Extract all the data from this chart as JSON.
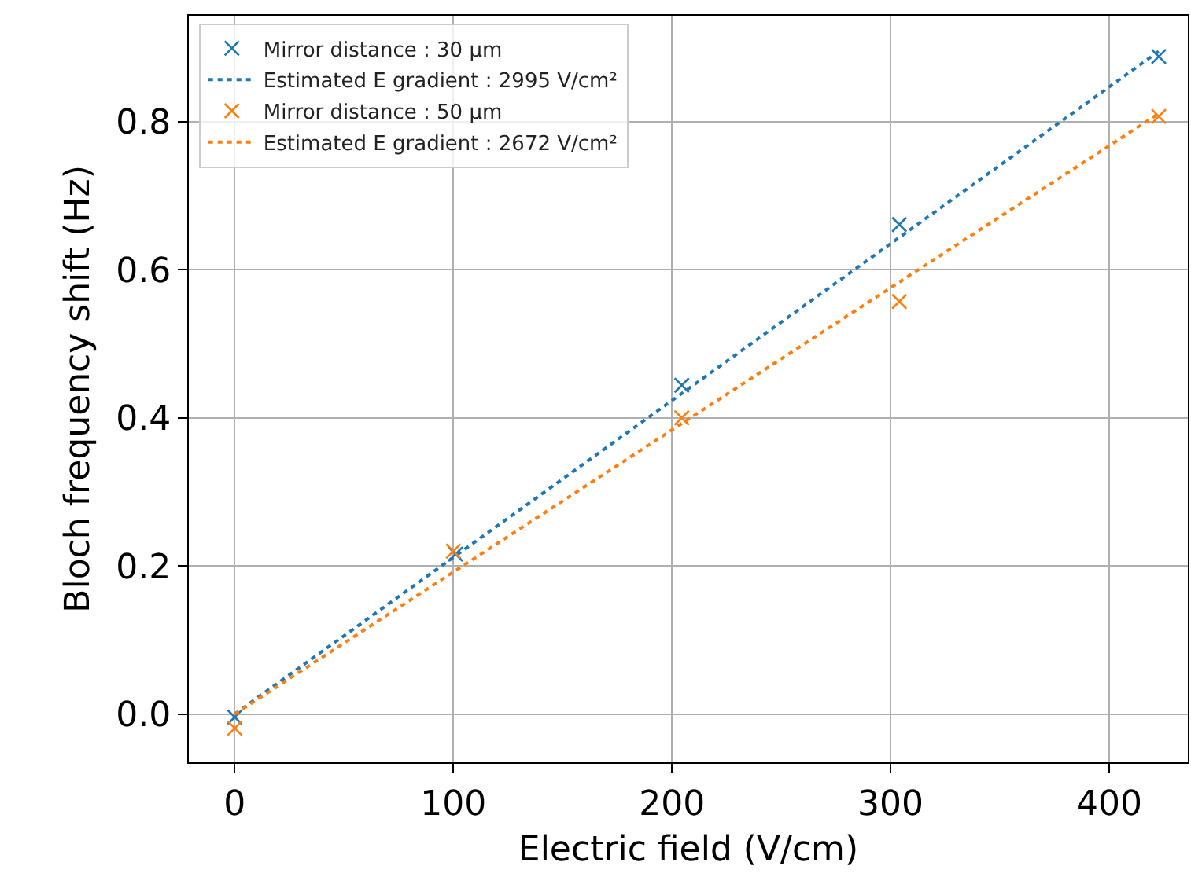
{
  "chart_data": {
    "type": "scatter",
    "xlabel": "Electric field (V/cm)",
    "ylabel": "Bloch frequency shift (Hz)",
    "xlim": [
      -21,
      436
    ],
    "xticks": [
      0,
      100,
      200,
      300,
      400
    ],
    "ylim": [
      -0.065,
      0.943
    ],
    "yticks": [
      {
        "value": 0,
        "label": "0.0"
      },
      {
        "value": 0.2,
        "label": "0.2"
      },
      {
        "value": 0.4,
        "label": "0.4"
      },
      {
        "value": 0.6,
        "label": "0.6"
      },
      {
        "value": 0.8,
        "label": "0.8"
      }
    ],
    "grid": true,
    "legend": "top left",
    "series": [
      {
        "name": "Mirror distance : 30 µm",
        "marker": "cross",
        "color": "#1f77b4",
        "x": [
          0,
          101,
          204.5,
          304,
          422.7
        ],
        "values": [
          -0.004,
          0.216,
          0.444,
          0.661,
          0.888
        ]
      },
      {
        "name": "Estimated E gradient : 2995 V/cm²",
        "type": "line",
        "marker": "none",
        "line_style": "dotted",
        "color": "#1f77b4",
        "x": [
          0,
          422.7
        ],
        "values": [
          0,
          0.895
        ]
      },
      {
        "name": "Mirror distance : 50 µm",
        "marker": "cross",
        "color": "#ff7f0e",
        "x": [
          0,
          100,
          204.5,
          304,
          422.7
        ],
        "values": [
          -0.019,
          0.22,
          0.4,
          0.557,
          0.807
        ]
      },
      {
        "name": "Estimated E gradient : 2672 V/cm²",
        "type": "line",
        "marker": "none",
        "line_style": "dotted",
        "color": "#ff7f0e",
        "x": [
          0,
          422.7
        ],
        "values": [
          0,
          0.811
        ]
      }
    ]
  }
}
